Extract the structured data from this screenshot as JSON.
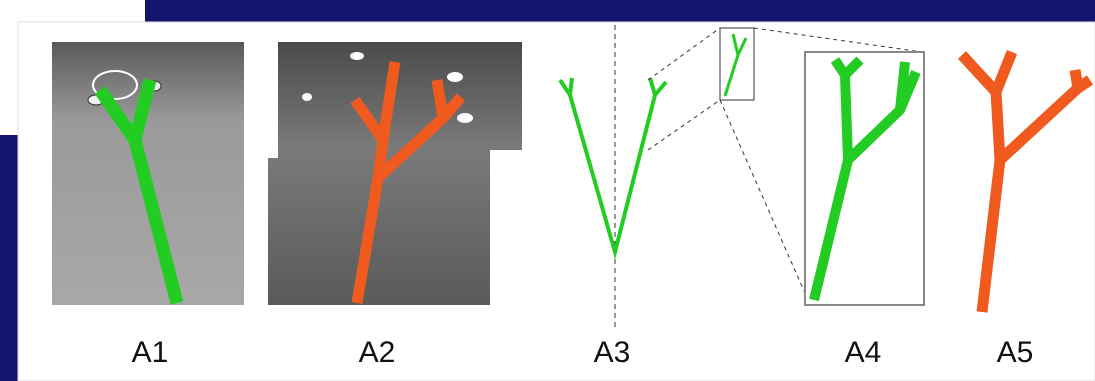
{
  "panels": [
    {
      "label": "A1"
    },
    {
      "label": "A2"
    },
    {
      "label": "A3"
    },
    {
      "label": "A4"
    },
    {
      "label": "A5"
    }
  ]
}
